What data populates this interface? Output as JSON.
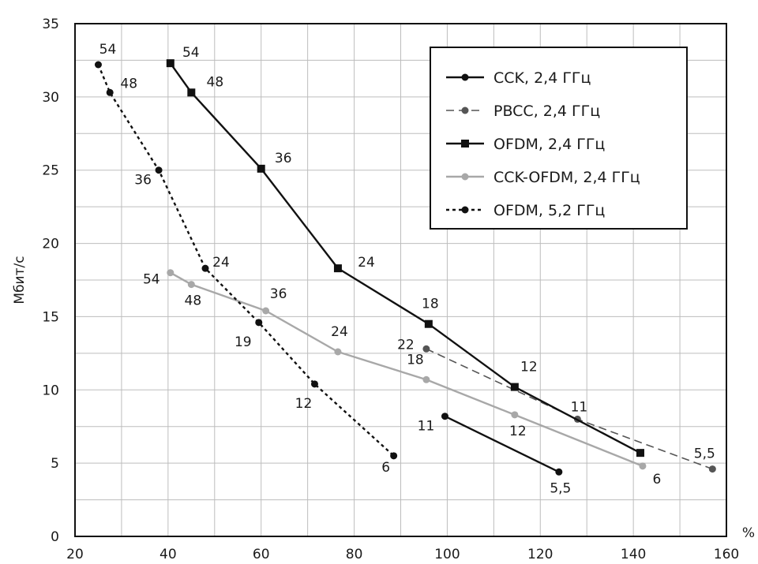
{
  "chart_data": {
    "type": "line",
    "title": "",
    "xlabel": "%",
    "ylabel": "Мбит/с",
    "xlim": [
      20,
      160
    ],
    "ylim": [
      0,
      35
    ],
    "x_ticks": [
      "20",
      "40",
      "60",
      "80",
      "100",
      "120",
      "140",
      "160"
    ],
    "y_ticks": [
      "0",
      "5",
      "10",
      "15",
      "20",
      "25",
      "30",
      "35"
    ],
    "grid": true,
    "legend_position": "top-right",
    "series": [
      {
        "name": "CCK, 2,4 ГГц",
        "color": "#111111",
        "dash": "solid",
        "marker": "circle",
        "points": [
          {
            "x": 99.5,
            "y": 8.2,
            "label": "11"
          },
          {
            "x": 124,
            "y": 4.4,
            "label": "5,5"
          }
        ]
      },
      {
        "name": "PBCC, 2,4 ГГц",
        "color": "#555555",
        "dash": "dashed",
        "marker": "circle",
        "points": [
          {
            "x": 95.5,
            "y": 12.8,
            "label": "22"
          },
          {
            "x": 128,
            "y": 8.0,
            "label": "11"
          },
          {
            "x": 157,
            "y": 4.6,
            "label": "5,5"
          }
        ]
      },
      {
        "name": "OFDM, 2,4 ГГц",
        "color": "#111111",
        "dash": "solid",
        "marker": "square",
        "points": [
          {
            "x": 40.5,
            "y": 32.3,
            "label": "54"
          },
          {
            "x": 45,
            "y": 30.3,
            "label": "48"
          },
          {
            "x": 60,
            "y": 25.1,
            "label": "36"
          },
          {
            "x": 76.5,
            "y": 18.3,
            "label": "24"
          },
          {
            "x": 96,
            "y": 14.5,
            "label": "18"
          },
          {
            "x": 114.5,
            "y": 10.2,
            "label": "12"
          },
          {
            "x": 141.5,
            "y": 5.7,
            "label": ""
          }
        ]
      },
      {
        "name": "CCK-OFDM, 2,4 ГГц",
        "color": "#a8a8a8",
        "dash": "solid",
        "marker": "circle",
        "points": [
          {
            "x": 40.5,
            "y": 18.0,
            "label": "54"
          },
          {
            "x": 45,
            "y": 17.2,
            "label": "48"
          },
          {
            "x": 61,
            "y": 15.4,
            "label": "36"
          },
          {
            "x": 76.5,
            "y": 12.6,
            "label": "24"
          },
          {
            "x": 95.5,
            "y": 10.7,
            "label": "18"
          },
          {
            "x": 114.5,
            "y": 8.3,
            "label": "12"
          },
          {
            "x": 142,
            "y": 4.8,
            "label": "6"
          }
        ]
      },
      {
        "name": "OFDM, 5,2 ГГц",
        "color": "#111111",
        "dash": "dotted",
        "marker": "circle",
        "points": [
          {
            "x": 25,
            "y": 32.2,
            "label": "54"
          },
          {
            "x": 27.5,
            "y": 30.3,
            "label": "48"
          },
          {
            "x": 38,
            "y": 25.0,
            "label": "36"
          },
          {
            "x": 48,
            "y": 18.3,
            "label": "24"
          },
          {
            "x": 59.5,
            "y": 14.6,
            "label": "19"
          },
          {
            "x": 71.5,
            "y": 10.4,
            "label": "12"
          },
          {
            "x": 88.5,
            "y": 5.5,
            "label": "6"
          }
        ]
      }
    ]
  }
}
